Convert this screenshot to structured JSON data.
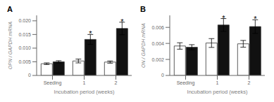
{
  "chart_data": [
    {
      "type": "bar",
      "title": "A",
      "xlabel": "Incubation period (weeks)",
      "ylabel": "OPN / GAPDH mRNA",
      "categories": [
        "Seeding",
        "1",
        "2"
      ],
      "series": [
        {
          "color": "#ffffff",
          "values": [
            0.0043,
            0.0053,
            0.0049
          ],
          "errors": [
            0.0003,
            0.0007,
            0.0004
          ]
        },
        {
          "color": "#111111",
          "values": [
            0.005,
            0.0132,
            0.0172
          ],
          "errors": [
            0.0004,
            0.0018,
            0.0023
          ],
          "annotations": [
            null,
            "*",
            "*"
          ]
        }
      ],
      "ylim": [
        0,
        0.022
      ],
      "yticks": [
        0,
        0.005,
        {
          "value": 0.01,
          "label": "0.010"
        },
        0.015,
        {
          "value": 0.02,
          "label": "0.020"
        }
      ],
      "grid": false
    },
    {
      "type": "bar",
      "title": "B",
      "xlabel": "Incubation period (weeks)",
      "ylabel": "ON / GAPDH mRNA",
      "categories": [
        "Seeding",
        "1",
        "2"
      ],
      "series": [
        {
          "color": "#ffffff",
          "values": [
            0.00368,
            0.00405,
            0.00395
          ],
          "errors": [
            0.0004,
            0.00055,
            0.00042
          ]
        },
        {
          "color": "#111111",
          "values": [
            0.00352,
            0.0063,
            0.0061
          ],
          "errors": [
            0.00032,
            0.0008,
            0.00085
          ],
          "annotations": [
            null,
            "*",
            "*"
          ]
        }
      ],
      "ylim": [
        0,
        0.0075
      ],
      "yticks": [
        0,
        0.002,
        0.004,
        0.006
      ],
      "grid": false
    }
  ]
}
